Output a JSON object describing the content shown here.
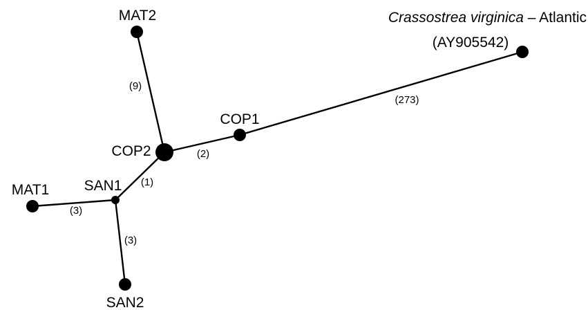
{
  "network": {
    "nodes": [
      {
        "id": "MAT2",
        "label": "MAT2"
      },
      {
        "id": "COP2",
        "label": "COP2"
      },
      {
        "id": "COP1",
        "label": "COP1"
      },
      {
        "id": "SAN1",
        "label": "SAN1"
      },
      {
        "id": "MAT1",
        "label": "MAT1"
      },
      {
        "id": "SAN2",
        "label": "SAN2"
      },
      {
        "id": "CV",
        "label_species": "Crassostrea virginica",
        "label_suffix": " – Atlantic",
        "label_accession": "(AY905542)"
      }
    ],
    "edges": [
      {
        "from": "MAT2",
        "to": "COP2",
        "label": "(9)"
      },
      {
        "from": "COP2",
        "to": "COP1",
        "label": "(2)"
      },
      {
        "from": "COP1",
        "to": "CV",
        "label": "(273)"
      },
      {
        "from": "COP2",
        "to": "SAN1",
        "label": "(1)"
      },
      {
        "from": "SAN1",
        "to": "MAT1",
        "label": "(3)"
      },
      {
        "from": "SAN1",
        "to": "SAN2",
        "label": "(3)"
      }
    ]
  }
}
